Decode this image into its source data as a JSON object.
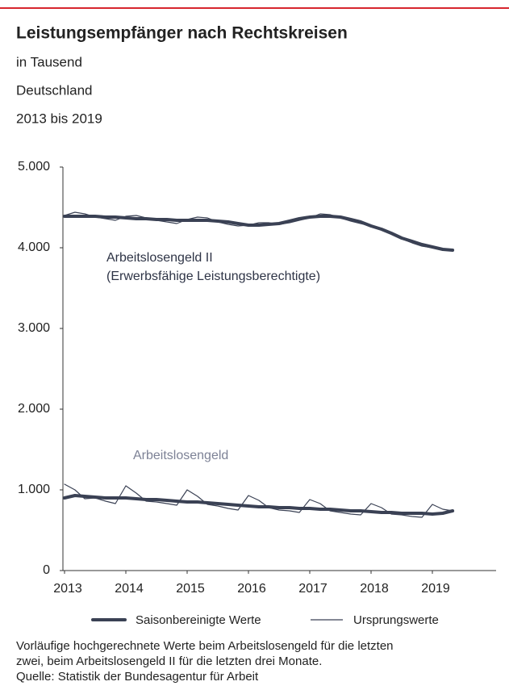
{
  "chart_data": {
    "type": "line",
    "title": "Leistungsempfänger nach Rechtskreisen",
    "subtitles": [
      "in Tausend",
      "Deutschland",
      "2013 bis 2019"
    ],
    "x": [
      2013.0,
      2013.17,
      2013.33,
      2013.5,
      2013.67,
      2013.83,
      2014.0,
      2014.17,
      2014.33,
      2014.5,
      2014.67,
      2014.83,
      2015.0,
      2015.17,
      2015.33,
      2015.5,
      2015.67,
      2015.83,
      2016.0,
      2016.17,
      2016.33,
      2016.5,
      2016.67,
      2016.83,
      2017.0,
      2017.17,
      2017.33,
      2017.5,
      2017.67,
      2017.83,
      2018.0,
      2018.17,
      2018.33,
      2018.5,
      2018.67,
      2018.83,
      2019.0,
      2019.17,
      2019.33
    ],
    "series": [
      {
        "name": "Arbeitslosengeld II",
        "note": "(Erwerbsfähige Leistungsberechtigte)",
        "color": "#3a4154",
        "label_color": "#2e3446",
        "seasonally_adjusted": [
          4390,
          4390,
          4390,
          4390,
          4380,
          4380,
          4370,
          4360,
          4360,
          4350,
          4350,
          4340,
          4340,
          4340,
          4340,
          4330,
          4320,
          4300,
          4280,
          4280,
          4290,
          4300,
          4330,
          4360,
          4380,
          4390,
          4390,
          4380,
          4350,
          4320,
          4270,
          4230,
          4180,
          4120,
          4080,
          4040,
          4010,
          3980,
          3970
        ],
        "original": [
          4400,
          4440,
          4420,
          4380,
          4360,
          4340,
          4390,
          4400,
          4370,
          4340,
          4320,
          4300,
          4350,
          4380,
          4370,
          4320,
          4290,
          4270,
          4280,
          4310,
          4310,
          4290,
          4310,
          4340,
          4370,
          4420,
          4410,
          4370,
          4330,
          4300,
          4270,
          4240,
          4180,
          4110,
          4060,
          4020,
          4000,
          3990,
          3980
        ]
      },
      {
        "name": "Arbeitslosengeld",
        "color": "#3a4154",
        "label_color": "#7d8296",
        "seasonally_adjusted": [
          900,
          930,
          920,
          910,
          900,
          900,
          900,
          890,
          880,
          880,
          870,
          860,
          850,
          850,
          840,
          830,
          820,
          810,
          800,
          790,
          790,
          780,
          780,
          770,
          770,
          760,
          760,
          750,
          740,
          740,
          730,
          720,
          720,
          710,
          710,
          710,
          700,
          710,
          740
        ],
        "original": [
          1070,
          1000,
          890,
          900,
          860,
          830,
          1050,
          960,
          860,
          850,
          830,
          810,
          1000,
          920,
          820,
          800,
          770,
          750,
          930,
          870,
          780,
          750,
          740,
          720,
          880,
          830,
          740,
          720,
          700,
          690,
          830,
          780,
          700,
          690,
          670,
          660,
          820,
          760,
          740
        ]
      }
    ],
    "legend": [
      {
        "name": "Saisonbereinigte Werte",
        "line_width": 4
      },
      {
        "name": "Ursprungswerte",
        "line_width": 1.2
      }
    ],
    "xlim": [
      2013,
      2020
    ],
    "xticks": [
      2013,
      2014,
      2015,
      2016,
      2017,
      2018,
      2019
    ],
    "ylim": [
      0,
      5000
    ],
    "yticks": [
      0,
      {
        "value": 1000,
        "label": "1.000"
      },
      {
        "value": 2000,
        "label": "2.000"
      },
      {
        "value": 3000,
        "label": "3.000"
      },
      {
        "value": 4000,
        "label": "4.000"
      },
      {
        "value": 5000,
        "label": "5.000"
      }
    ],
    "notes": [
      "Vorläufige hochgerechnete Werte beim Arbeitslosengeld für die letzten",
      "zwei, beim Arbeitslosengeld II für die letzten drei Monate.",
      "Quelle: Statistik der Bundesagentur für Arbeit"
    ],
    "accent_color": "#d7262e"
  }
}
